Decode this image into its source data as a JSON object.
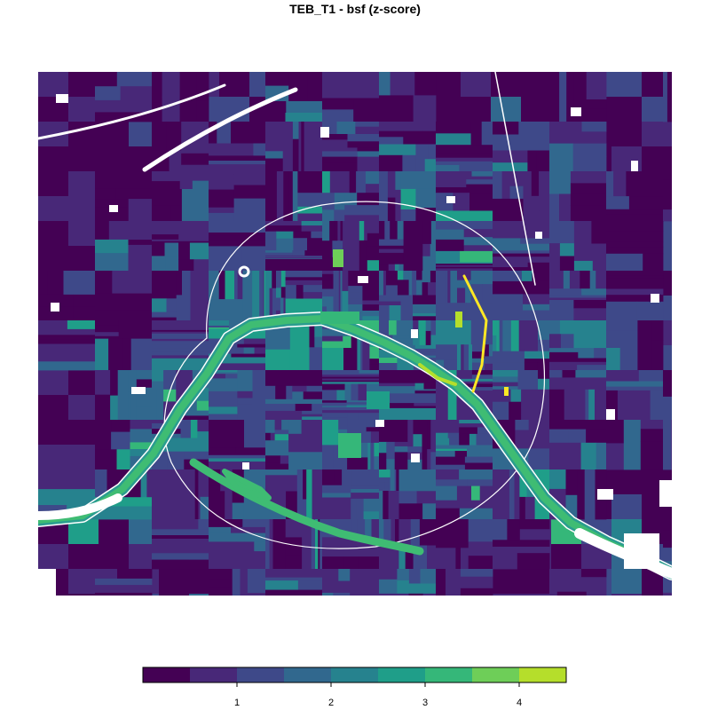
{
  "title": "TEB_T1 - bsf  (z-score)",
  "map": {
    "description_hidden": false,
    "region": "Paris",
    "river": "Seine"
  },
  "legend": {
    "breaks": [
      0,
      0.5,
      1,
      1.5,
      2,
      2.5,
      3,
      3.5,
      4,
      4.5
    ],
    "tick_values": [
      1,
      2,
      3,
      4
    ],
    "tick_labels": [
      "1",
      "2",
      "3",
      "4"
    ],
    "colors": [
      "#440154",
      "#482878",
      "#3e4989",
      "#31688e",
      "#26828e",
      "#1f9e89",
      "#35b779",
      "#6ece58",
      "#b5de2b",
      "#fde725"
    ]
  },
  "colors": {
    "background": "#ffffff",
    "river_green": "#3fbc73",
    "river_teal": "#2a9d8f",
    "highlight_yellow": "#fde725",
    "dark_base": "#440154"
  }
}
